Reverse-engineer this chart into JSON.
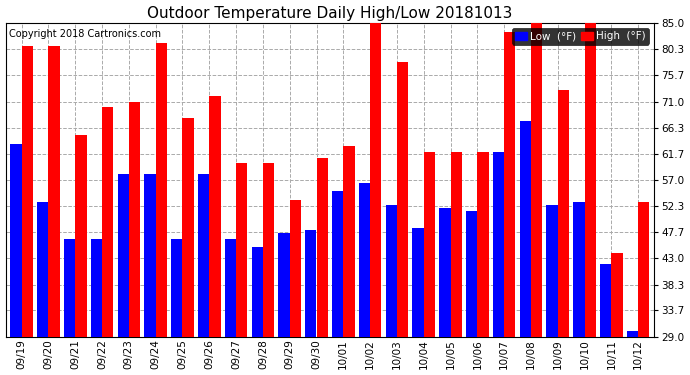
{
  "title": "Outdoor Temperature Daily High/Low 20181013",
  "copyright": "Copyright 2018 Cartronics.com",
  "legend_low": "Low  (°F)",
  "legend_high": "High  (°F)",
  "dates": [
    "09/19",
    "09/20",
    "09/21",
    "09/22",
    "09/23",
    "09/24",
    "09/25",
    "09/26",
    "09/27",
    "09/28",
    "09/29",
    "09/30",
    "10/01",
    "10/02",
    "10/03",
    "10/04",
    "10/05",
    "10/06",
    "10/07",
    "10/08",
    "10/09",
    "10/10",
    "10/11",
    "10/12"
  ],
  "high_values": [
    81.0,
    81.0,
    65.0,
    70.0,
    71.0,
    81.5,
    68.0,
    72.0,
    60.0,
    60.0,
    53.5,
    61.0,
    63.0,
    85.5,
    78.0,
    62.0,
    62.0,
    62.0,
    83.5,
    85.0,
    73.0,
    85.0,
    44.0,
    53.0
  ],
  "low_values": [
    63.5,
    53.0,
    46.5,
    46.5,
    58.0,
    58.0,
    46.5,
    58.0,
    46.5,
    45.0,
    47.5,
    48.0,
    55.0,
    56.5,
    52.5,
    48.5,
    52.0,
    51.5,
    62.0,
    67.5,
    52.5,
    53.0,
    42.0,
    30.0
  ],
  "ylim_min": 29.0,
  "ylim_max": 85.0,
  "yticks": [
    29.0,
    33.7,
    38.3,
    43.0,
    47.7,
    52.3,
    57.0,
    61.7,
    66.3,
    71.0,
    75.7,
    80.3,
    85.0
  ],
  "bar_color_low": "#0000ff",
  "bar_color_high": "#ff0000",
  "background_color": "#ffffff",
  "grid_color": "#aaaaaa",
  "title_fontsize": 11,
  "tick_fontsize": 7.5,
  "legend_fontsize": 7.5,
  "copyright_fontsize": 7
}
